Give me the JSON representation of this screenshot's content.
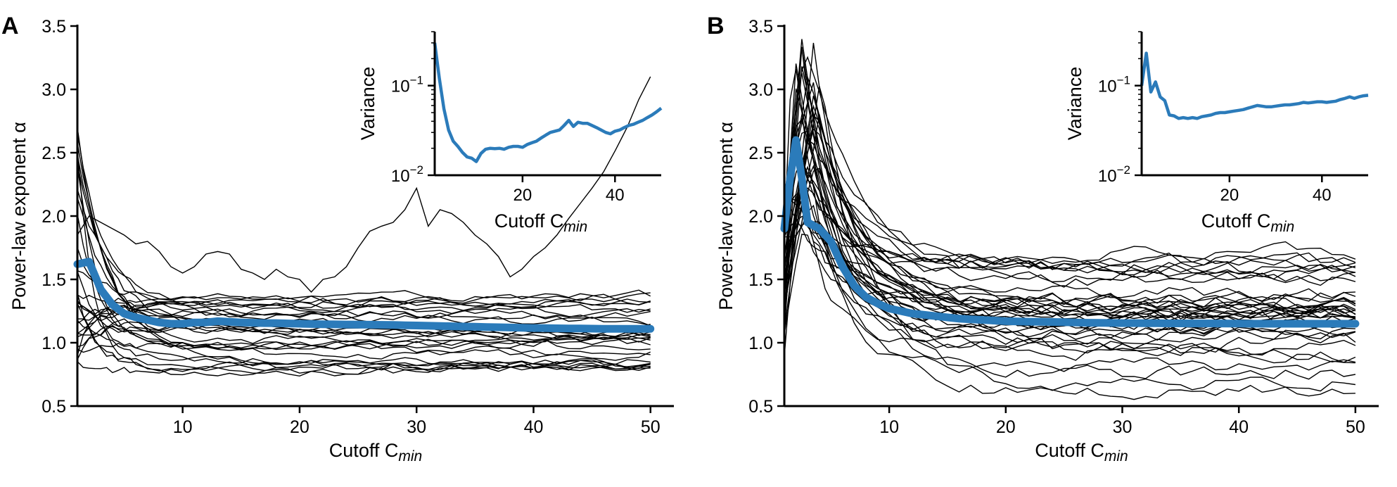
{
  "colors": {
    "mean": "#2b7bba",
    "trace": "#000000",
    "background": "#ffffff"
  },
  "chart_data": [
    {
      "panel": "A",
      "type": "line",
      "xlabel": "Cutoff C",
      "xlabel_sub": "min",
      "ylabel": "Power-law exponent α",
      "xlim": [
        1,
        52
      ],
      "ylim": [
        0.5,
        3.5
      ],
      "xticks": [
        10,
        20,
        30,
        40,
        50
      ],
      "yticks": [
        0.5,
        1.0,
        1.5,
        2.0,
        2.5,
        3.0,
        3.5
      ],
      "grid": false,
      "legend": "none",
      "trace_count": 30,
      "outlier_series": {
        "x": [
          1,
          2,
          3,
          4,
          5,
          6,
          7,
          8,
          9,
          10,
          11,
          12,
          13,
          14,
          15,
          16,
          17,
          18,
          19,
          20,
          21,
          22,
          23,
          24,
          25,
          26,
          27,
          28,
          29,
          30,
          31,
          32,
          33,
          34,
          35,
          36,
          37,
          38,
          39,
          40,
          41,
          42,
          43,
          44,
          45,
          46,
          47,
          48,
          49,
          50
        ],
        "values": [
          1.85,
          2.0,
          1.95,
          1.9,
          1.85,
          1.78,
          1.8,
          1.72,
          1.6,
          1.55,
          1.6,
          1.7,
          1.72,
          1.7,
          1.58,
          1.55,
          1.5,
          1.58,
          1.52,
          1.5,
          1.4,
          1.5,
          1.52,
          1.6,
          1.75,
          1.88,
          1.92,
          1.95,
          2.05,
          2.22,
          1.92,
          2.05,
          2.02,
          1.95,
          1.85,
          1.78,
          1.68,
          1.52,
          1.58,
          1.68,
          1.75,
          1.85,
          1.98,
          2.1,
          2.22,
          2.35,
          2.52,
          2.7,
          2.92,
          3.1
        ]
      },
      "mean_series": {
        "x": [
          1,
          2,
          3,
          4,
          5,
          6,
          7,
          8,
          9,
          10,
          11,
          12,
          13,
          14,
          15,
          16,
          17,
          18,
          19,
          20,
          21,
          22,
          23,
          24,
          25,
          26,
          27,
          28,
          29,
          30,
          31,
          32,
          33,
          34,
          35,
          36,
          37,
          38,
          39,
          40,
          41,
          42,
          43,
          44,
          45,
          46,
          47,
          48,
          49,
          50
        ],
        "values": [
          1.62,
          1.64,
          1.42,
          1.3,
          1.23,
          1.2,
          1.18,
          1.16,
          1.15,
          1.15,
          1.16,
          1.16,
          1.17,
          1.165,
          1.16,
          1.158,
          1.155,
          1.155,
          1.152,
          1.15,
          1.148,
          1.146,
          1.145,
          1.144,
          1.143,
          1.142,
          1.141,
          1.14,
          1.138,
          1.136,
          1.134,
          1.132,
          1.13,
          1.128,
          1.126,
          1.124,
          1.122,
          1.12,
          1.118,
          1.116,
          1.115,
          1.114,
          1.113,
          1.112,
          1.111,
          1.11,
          1.11,
          1.11,
          1.11,
          1.11
        ]
      },
      "inset": {
        "type": "line",
        "xlabel": "Cutoff C",
        "xlabel_sub": "min",
        "ylabel": "Variance",
        "yscale": "log",
        "xlim": [
          1,
          50
        ],
        "ylim": [
          0.01,
          0.4
        ],
        "xticks": [
          20,
          40
        ],
        "yticks": [
          {
            "value": 0.01,
            "label": "10",
            "exp": "−2"
          },
          {
            "value": 0.1,
            "label": "10",
            "exp": "−1"
          }
        ],
        "x": [
          1,
          2,
          3,
          4,
          5,
          6,
          7,
          8,
          9,
          10,
          11,
          12,
          13,
          14,
          15,
          16,
          17,
          18,
          19,
          20,
          21,
          22,
          23,
          24,
          25,
          26,
          27,
          28,
          29,
          30,
          31,
          32,
          33,
          34,
          35,
          36,
          37,
          38,
          39,
          40,
          41,
          42,
          43,
          44,
          45,
          46,
          47,
          48,
          49,
          50
        ],
        "values": [
          0.3,
          0.12,
          0.055,
          0.032,
          0.024,
          0.021,
          0.018,
          0.016,
          0.0155,
          0.0142,
          0.0175,
          0.0195,
          0.02,
          0.0198,
          0.02,
          0.0195,
          0.0205,
          0.021,
          0.021,
          0.0205,
          0.022,
          0.023,
          0.024,
          0.026,
          0.028,
          0.03,
          0.031,
          0.032,
          0.036,
          0.041,
          0.035,
          0.039,
          0.038,
          0.038,
          0.036,
          0.034,
          0.032,
          0.03,
          0.029,
          0.031,
          0.032,
          0.034,
          0.036,
          0.037,
          0.039,
          0.041,
          0.044,
          0.047,
          0.051,
          0.056
        ]
      }
    },
    {
      "panel": "B",
      "type": "line",
      "xlabel": "Cutoff C",
      "xlabel_sub": "min",
      "ylabel": "Power-law exponent α",
      "xlim": [
        1,
        52
      ],
      "ylim": [
        0.5,
        3.5
      ],
      "xticks": [
        10,
        20,
        30,
        40,
        50
      ],
      "yticks": [
        0.5,
        1.0,
        1.5,
        2.0,
        2.5,
        3.0,
        3.5
      ],
      "grid": false,
      "legend": "none",
      "trace_count": 40,
      "mean_series": {
        "x": [
          1,
          1.5,
          2,
          2.5,
          3,
          4,
          5,
          6,
          7,
          8,
          9,
          10,
          11,
          12,
          13,
          14,
          15,
          16,
          17,
          18,
          19,
          20,
          21,
          22,
          23,
          24,
          25,
          26,
          27,
          28,
          29,
          30,
          31,
          32,
          33,
          34,
          35,
          36,
          37,
          38,
          39,
          40,
          41,
          42,
          43,
          44,
          45,
          46,
          47,
          48,
          49,
          50
        ],
        "values": [
          1.9,
          2.3,
          2.6,
          2.3,
          1.95,
          1.9,
          1.8,
          1.6,
          1.45,
          1.36,
          1.31,
          1.27,
          1.25,
          1.23,
          1.22,
          1.21,
          1.2,
          1.19,
          1.185,
          1.18,
          1.175,
          1.17,
          1.168,
          1.166,
          1.165,
          1.164,
          1.162,
          1.16,
          1.158,
          1.157,
          1.156,
          1.155,
          1.155,
          1.154,
          1.154,
          1.153,
          1.153,
          1.152,
          1.152,
          1.152,
          1.151,
          1.151,
          1.15,
          1.15,
          1.15,
          1.15,
          1.15,
          1.15,
          1.15,
          1.15,
          1.15,
          1.15
        ]
      },
      "inset": {
        "type": "line",
        "xlabel": "Cutoff C",
        "xlabel_sub": "min",
        "ylabel": "Variance",
        "yscale": "log",
        "xlim": [
          1,
          50
        ],
        "ylim": [
          0.01,
          0.4
        ],
        "xticks": [
          20,
          40
        ],
        "yticks": [
          {
            "value": 0.01,
            "label": "10",
            "exp": "−2"
          },
          {
            "value": 0.1,
            "label": "10",
            "exp": "−1"
          }
        ],
        "x": [
          1,
          2,
          3,
          4,
          5,
          6,
          7,
          8,
          9,
          10,
          11,
          12,
          13,
          14,
          15,
          16,
          17,
          18,
          19,
          20,
          21,
          22,
          23,
          24,
          25,
          26,
          27,
          28,
          29,
          30,
          31,
          32,
          33,
          34,
          35,
          36,
          37,
          38,
          39,
          40,
          41,
          42,
          43,
          44,
          45,
          46,
          47,
          48,
          49,
          50
        ],
        "values": [
          0.1,
          0.23,
          0.085,
          0.11,
          0.075,
          0.068,
          0.047,
          0.046,
          0.043,
          0.044,
          0.043,
          0.044,
          0.043,
          0.045,
          0.046,
          0.047,
          0.049,
          0.05,
          0.05,
          0.051,
          0.052,
          0.053,
          0.054,
          0.056,
          0.058,
          0.06,
          0.059,
          0.058,
          0.058,
          0.059,
          0.06,
          0.061,
          0.061,
          0.062,
          0.063,
          0.065,
          0.064,
          0.065,
          0.066,
          0.066,
          0.065,
          0.066,
          0.067,
          0.07,
          0.072,
          0.075,
          0.072,
          0.075,
          0.077,
          0.078
        ]
      }
    }
  ]
}
